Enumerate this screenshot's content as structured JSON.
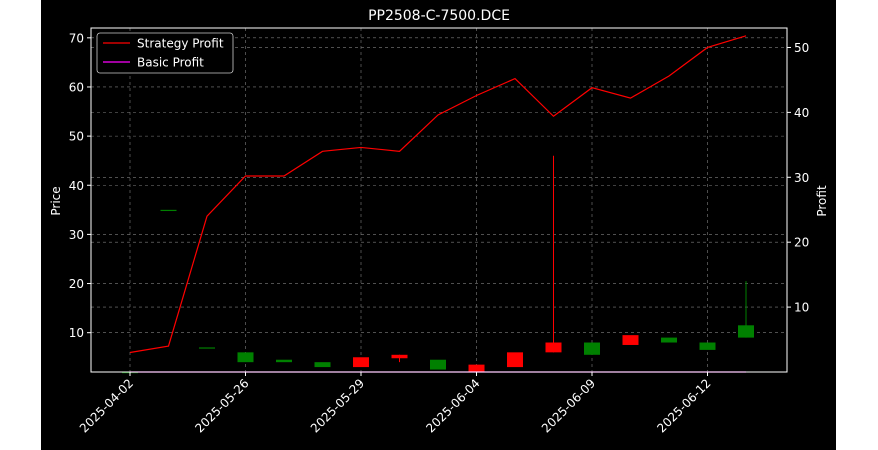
{
  "chart_data": {
    "type": "candlestick",
    "title": "PP2508-C-7500.DCE",
    "ylabel_left": "Price",
    "ylabel_right": "Profit",
    "grid": true,
    "legend_placement": "top-left",
    "ylim_left": [
      2,
      72
    ],
    "ylim_right": [
      0,
      53
    ],
    "yticks_left": [
      10,
      20,
      30,
      40,
      50,
      60,
      70
    ],
    "yticks_right": [
      10,
      20,
      30,
      40,
      50
    ],
    "xtick_labels": [
      "2025-04-02",
      "2025-05-26",
      "2025-05-29",
      "2025-06-04",
      "2025-06-09",
      "2025-06-12"
    ],
    "xtick_indices": [
      0,
      3,
      6,
      9,
      12,
      15
    ],
    "x_count": 17,
    "colors": {
      "up": "#008000",
      "down": "#ff0000",
      "strategy": "#ff0000",
      "basic": "#ff00ff",
      "background": "#000000",
      "grid": "#808080"
    },
    "candles": [
      {
        "open": 2.0,
        "high": 2.0,
        "low": 2.0,
        "close": 2.0
      },
      {
        "open": 35.0,
        "high": 35.0,
        "low": 35.0,
        "close": 35.0
      },
      {
        "open": 7.0,
        "high": 7.0,
        "low": 7.0,
        "close": 7.0
      },
      {
        "open": 4.0,
        "high": 6.0,
        "low": 4.0,
        "close": 6.0
      },
      {
        "open": 4.0,
        "high": 4.5,
        "low": 4.0,
        "close": 4.5
      },
      {
        "open": 3.0,
        "high": 4.0,
        "low": 3.0,
        "close": 4.0
      },
      {
        "open": 5.0,
        "high": 5.0,
        "low": 3.0,
        "close": 3.0
      },
      {
        "open": 5.5,
        "high": 5.5,
        "low": 4.0,
        "close": 4.8
      },
      {
        "open": 2.5,
        "high": 4.5,
        "low": 2.5,
        "close": 4.5
      },
      {
        "open": 3.5,
        "high": 3.5,
        "low": 2.0,
        "close": 2.0
      },
      {
        "open": 6.0,
        "high": 6.0,
        "low": 3.0,
        "close": 3.0
      },
      {
        "open": 8.0,
        "high": 46.0,
        "low": 6.0,
        "close": 6.0
      },
      {
        "open": 5.5,
        "high": 8.0,
        "low": 5.5,
        "close": 8.0
      },
      {
        "open": 9.5,
        "high": 9.5,
        "low": 7.5,
        "close": 7.5
      },
      {
        "open": 8.0,
        "high": 9.0,
        "low": 8.0,
        "close": 9.0
      },
      {
        "open": 6.5,
        "high": 8.0,
        "low": 6.5,
        "close": 8.0
      },
      {
        "open": 9.0,
        "high": 20.5,
        "low": 9.0,
        "close": 11.5
      }
    ],
    "series": [
      {
        "name": "Strategy Profit",
        "axis": "right",
        "values": [
          3,
          4,
          24,
          30.2,
          30.2,
          34,
          34.6,
          34,
          39.6,
          42.6,
          45.2,
          39.4,
          43.8,
          42.2,
          45.6,
          50,
          51.8
        ]
      },
      {
        "name": "Basic Profit",
        "axis": "right",
        "values": [
          0,
          0,
          0,
          0,
          0,
          0,
          0,
          0,
          0,
          0,
          0,
          0,
          0,
          0,
          0,
          0,
          0
        ]
      }
    ]
  }
}
